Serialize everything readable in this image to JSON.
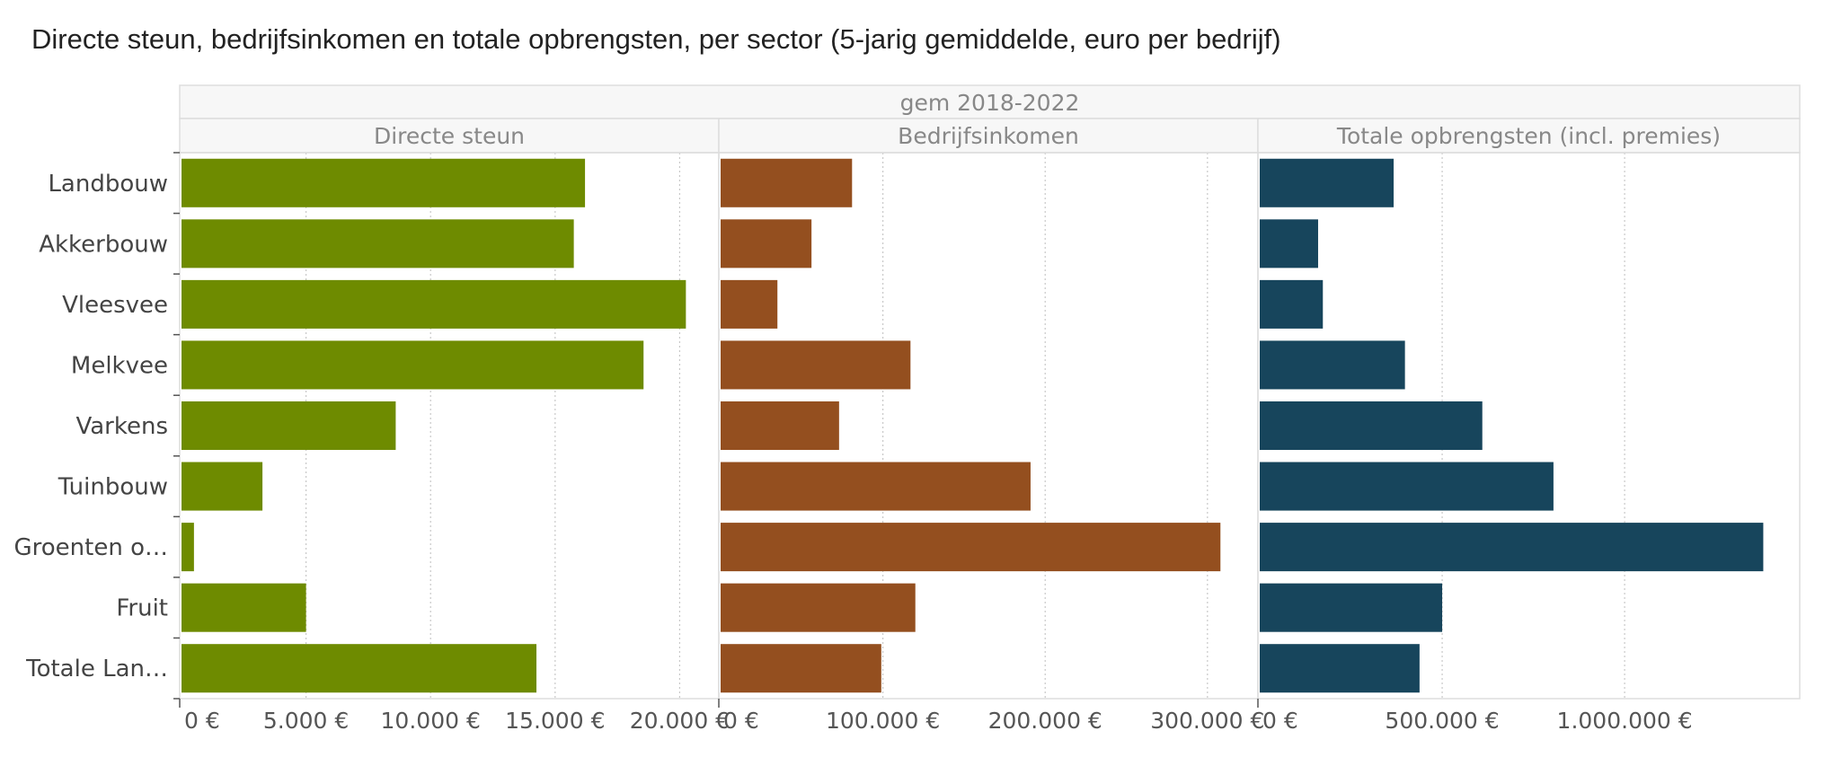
{
  "title": "Directe steun, bedrijfsinkomen en totale opbrengsten, per sector (5-jarig gemiddelde, euro per bedrijf)",
  "chart_data": {
    "type": "bar",
    "orientation": "horizontal",
    "title": "Directe steun, bedrijfsinkomen en totale opbrengsten, per sector (5-jarig gemiddelde, euro per bedrijf)",
    "column_header": "gem 2018-2022",
    "categories": [
      "Landbouw",
      "Akkerbouw",
      "Vleesvee",
      "Melkvee",
      "Varkens",
      "Tuinbouw",
      "Groenten o…",
      "Fruit",
      "Totale Lan…"
    ],
    "grid": true,
    "panels": [
      {
        "name": "Directe steun",
        "color": "#6e8b00",
        "xlim": [
          0,
          21500
        ],
        "ticks": [
          0,
          5000,
          10000,
          15000,
          20000
        ],
        "tick_labels": [
          "0 €",
          "5.000 €",
          "10.000 €",
          "15.000 €",
          "20.000 €"
        ],
        "values": [
          16200,
          15750,
          20250,
          18550,
          8600,
          3250,
          500,
          5000,
          14250
        ]
      },
      {
        "name": "Bedrijfsinkomen",
        "color": "#944f1f",
        "xlim": [
          0,
          330000
        ],
        "ticks": [
          0,
          100000,
          200000,
          300000
        ],
        "tick_labels": [
          "0 €",
          "100.000 €",
          "200.000 €",
          "300.000 €"
        ],
        "values": [
          81000,
          56000,
          35000,
          117000,
          73000,
          191000,
          308000,
          120000,
          99000
        ]
      },
      {
        "name": "Totale opbrengsten (incl. premies)",
        "color": "#17455c",
        "xlim": [
          0,
          1475000
        ],
        "ticks": [
          0,
          500000,
          1000000
        ],
        "tick_labels": [
          "0 €",
          "500.000 €",
          "1.000.000 €"
        ],
        "values": [
          367000,
          160000,
          173000,
          398000,
          610000,
          805000,
          1380000,
          500000,
          438000
        ]
      }
    ]
  }
}
